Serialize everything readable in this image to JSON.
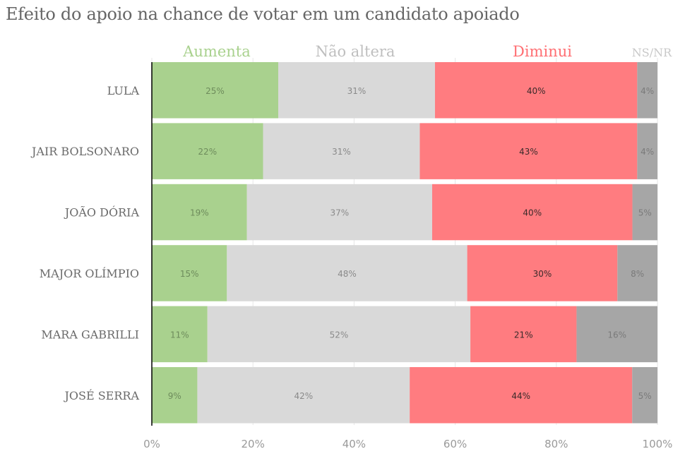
{
  "chart_data": {
    "type": "bar",
    "orientation": "horizontal",
    "stacked": true,
    "title": "Efeito do apoio na chance de votar em um candidato apoiado",
    "categories": [
      "LULA",
      "JAIR BOLSONARO",
      "JOÃO DÓRIA",
      "MAJOR OLÍMPIO",
      "MARA GABRILLI",
      "JOSÉ SERRA"
    ],
    "series": [
      {
        "name": "Aumenta",
        "color": "#a9d18e",
        "label_color": "#6e8c5c",
        "header_color": "#a9d18e",
        "values": [
          25,
          22,
          19,
          15,
          11,
          9
        ]
      },
      {
        "name": "Não altera",
        "color": "#d9d9d9",
        "label_color": "#8a8a8a",
        "header_color": "#bfbfbf",
        "values": [
          31,
          31,
          37,
          48,
          52,
          42
        ]
      },
      {
        "name": "Diminui",
        "color": "#ff7c80",
        "label_color": "#3a2a2a",
        "header_color": "#ff6f73",
        "values": [
          40,
          43,
          40,
          30,
          21,
          44
        ]
      },
      {
        "name": "NS/NR",
        "color": "#a6a6a6",
        "label_color": "#7a7a7a",
        "header_color": "#c8c8c8",
        "values": [
          4,
          4,
          5,
          8,
          16,
          5
        ]
      }
    ],
    "xlim": [
      0,
      100
    ],
    "xticks": [
      "0%",
      "20%",
      "40%",
      "60%",
      "80%",
      "100%"
    ],
    "legend": "top",
    "grid": true
  }
}
